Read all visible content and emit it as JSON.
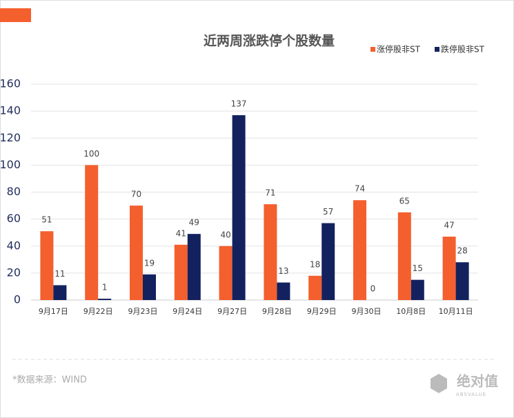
{
  "chart_data": {
    "type": "bar",
    "title": "近两周涨跌停个股数量",
    "categories": [
      "9月17日",
      "9月22日",
      "9月23日",
      "9月24日",
      "9月27日",
      "9月28日",
      "9月29日",
      "9月30日",
      "10月8日",
      "10月11日"
    ],
    "series": [
      {
        "name": "涨停股非ST",
        "color": "#f45f2e",
        "values": [
          51,
          100,
          70,
          41,
          40,
          71,
          18,
          74,
          65,
          47
        ]
      },
      {
        "name": "跌停股非ST",
        "color": "#13225e",
        "values": [
          11,
          1,
          19,
          49,
          137,
          13,
          57,
          0,
          15,
          28
        ]
      }
    ],
    "ylim": [
      0,
      160
    ],
    "yticks": [
      0,
      20,
      40,
      60,
      80,
      100,
      120,
      140,
      160
    ],
    "grid": true,
    "legend": "top-right",
    "source": "*数据来源：WIND",
    "logo": {
      "name": "绝对值",
      "sub": "ABSVALUE"
    }
  }
}
